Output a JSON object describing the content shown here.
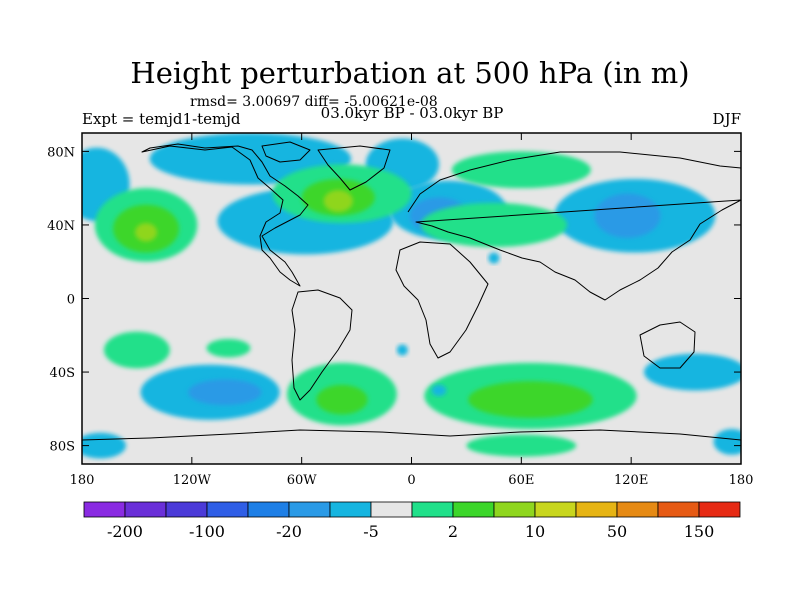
{
  "title": "Height perturbation at 500 hPa (in m)",
  "stats_text": "rmsd= 3.00697 diff= -5.00621e-08",
  "left_label": "Expt = temjd1-temjd",
  "center_label": "03.0kyr BP - 03.0kyr BP",
  "right_label": "DJF",
  "chart_data": {
    "type": "heatmap",
    "projection": "cylindrical-equidistant",
    "xlim": [
      -180,
      180
    ],
    "ylim": [
      -90,
      90
    ],
    "lon_ticks": [
      {
        "value": -180,
        "label": "180"
      },
      {
        "value": -120,
        "label": "120W"
      },
      {
        "value": -60,
        "label": "60W"
      },
      {
        "value": 0,
        "label": "0"
      },
      {
        "value": 60,
        "label": "60E"
      },
      {
        "value": 120,
        "label": "120E"
      },
      {
        "value": 180,
        "label": "180"
      }
    ],
    "lat_ticks": [
      {
        "value": 80,
        "label": "80N"
      },
      {
        "value": 40,
        "label": "40N"
      },
      {
        "value": 0,
        "label": "0"
      },
      {
        "value": -40,
        "label": "40S"
      },
      {
        "value": -80,
        "label": "80S"
      }
    ],
    "colorbar": {
      "colors": [
        "#8a2be2",
        "#6a2fd8",
        "#4b3ad8",
        "#2f5ee6",
        "#1e7fe6",
        "#2a9ae6",
        "#16b5e0",
        "#e6e6e6",
        "#20e08a",
        "#3cd62a",
        "#8fd61e",
        "#c8d61e",
        "#e6b414",
        "#e68a14",
        "#e65a14",
        "#e62a14"
      ],
      "tick_labels": [
        {
          "boundary": 1,
          "label": "-200"
        },
        {
          "boundary": 3,
          "label": "-100"
        },
        {
          "boundary": 5,
          "label": "-20"
        },
        {
          "boundary": 7,
          "label": "-5"
        },
        {
          "boundary": 9,
          "label": "2"
        },
        {
          "boundary": 11,
          "label": "10"
        },
        {
          "boundary": 13,
          "label": "50"
        },
        {
          "boundary": 15,
          "label": "150"
        }
      ]
    },
    "regions": [
      {
        "level": 6,
        "lon": -88,
        "lat": 76,
        "rlon": 55,
        "rlat": 14
      },
      {
        "level": 6,
        "lon": -5,
        "lat": 73,
        "rlon": 20,
        "rlat": 14
      },
      {
        "level": 6,
        "lon": -58,
        "lat": 42,
        "rlon": 48,
        "rlat": 18
      },
      {
        "level": 6,
        "lon": 20,
        "lat": 48,
        "rlon": 32,
        "rlat": 16
      },
      {
        "level": 5,
        "lon": 15,
        "lat": 45,
        "rlon": 16,
        "rlat": 10
      },
      {
        "level": 6,
        "lon": -172,
        "lat": 62,
        "rlon": 18,
        "rlat": 20
      },
      {
        "level": 8,
        "lon": -145,
        "lat": 40,
        "rlon": 28,
        "rlat": 20
      },
      {
        "level": 9,
        "lon": -145,
        "lat": 38,
        "rlon": 18,
        "rlat": 13
      },
      {
        "level": 10,
        "lon": -145,
        "lat": 36,
        "rlon": 6,
        "rlat": 5
      },
      {
        "level": 6,
        "lon": 122,
        "lat": 45,
        "rlon": 44,
        "rlat": 20
      },
      {
        "level": 5,
        "lon": 118,
        "lat": 45,
        "rlon": 18,
        "rlat": 12
      },
      {
        "level": 8,
        "lon": 45,
        "lat": 40,
        "rlon": 40,
        "rlat": 12
      },
      {
        "level": 8,
        "lon": 60,
        "lat": 70,
        "rlon": 38,
        "rlat": 10
      },
      {
        "level": 8,
        "lon": -38,
        "lat": 57,
        "rlon": 38,
        "rlat": 16
      },
      {
        "level": 9,
        "lon": -40,
        "lat": 55,
        "rlon": 20,
        "rlat": 10
      },
      {
        "level": 10,
        "lon": -40,
        "lat": 53,
        "rlon": 8,
        "rlat": 6
      },
      {
        "level": 8,
        "lon": -150,
        "lat": -28,
        "rlon": 18,
        "rlat": 10
      },
      {
        "level": 8,
        "lon": -100,
        "lat": -27,
        "rlon": 12,
        "rlat": 5
      },
      {
        "level": 6,
        "lon": -110,
        "lat": -51,
        "rlon": 38,
        "rlat": 15
      },
      {
        "level": 5,
        "lon": -102,
        "lat": -51,
        "rlon": 20,
        "rlat": 7
      },
      {
        "level": 8,
        "lon": -38,
        "lat": -52,
        "rlon": 30,
        "rlat": 17
      },
      {
        "level": 9,
        "lon": -38,
        "lat": -55,
        "rlon": 14,
        "rlat": 8
      },
      {
        "level": 8,
        "lon": 65,
        "lat": -53,
        "rlon": 58,
        "rlat": 18
      },
      {
        "level": 9,
        "lon": 65,
        "lat": -55,
        "rlon": 34,
        "rlat": 10
      },
      {
        "level": 6,
        "lon": 155,
        "lat": -40,
        "rlon": 28,
        "rlat": 10
      },
      {
        "level": 6,
        "lon": -170,
        "lat": -80,
        "rlon": 14,
        "rlat": 7
      },
      {
        "level": 6,
        "lon": 175,
        "lat": -78,
        "rlon": 10,
        "rlat": 7
      },
      {
        "level": 8,
        "lon": 60,
        "lat": -80,
        "rlon": 30,
        "rlat": 6
      },
      {
        "level": 6,
        "lon": -5,
        "lat": -28,
        "rlon": 3,
        "rlat": 3
      },
      {
        "level": 6,
        "lon": 15,
        "lat": -50,
        "rlon": 4,
        "rlat": 3
      },
      {
        "level": 6,
        "lon": 45,
        "lat": 22,
        "rlon": 3,
        "rlat": 3
      }
    ]
  }
}
